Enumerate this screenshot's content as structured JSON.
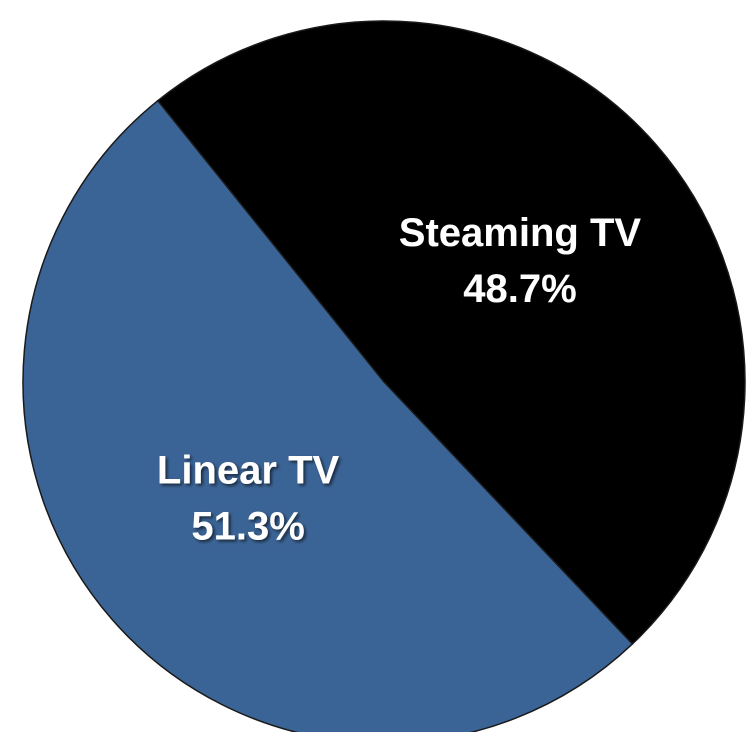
{
  "chart_data": {
    "type": "pie",
    "categories": [
      "Steaming TV",
      "Linear TV"
    ],
    "values": [
      48.7,
      51.3
    ],
    "value_labels": [
      "48.7%",
      "51.3%"
    ],
    "colors": [
      "#000000",
      "#3b6496"
    ]
  }
}
